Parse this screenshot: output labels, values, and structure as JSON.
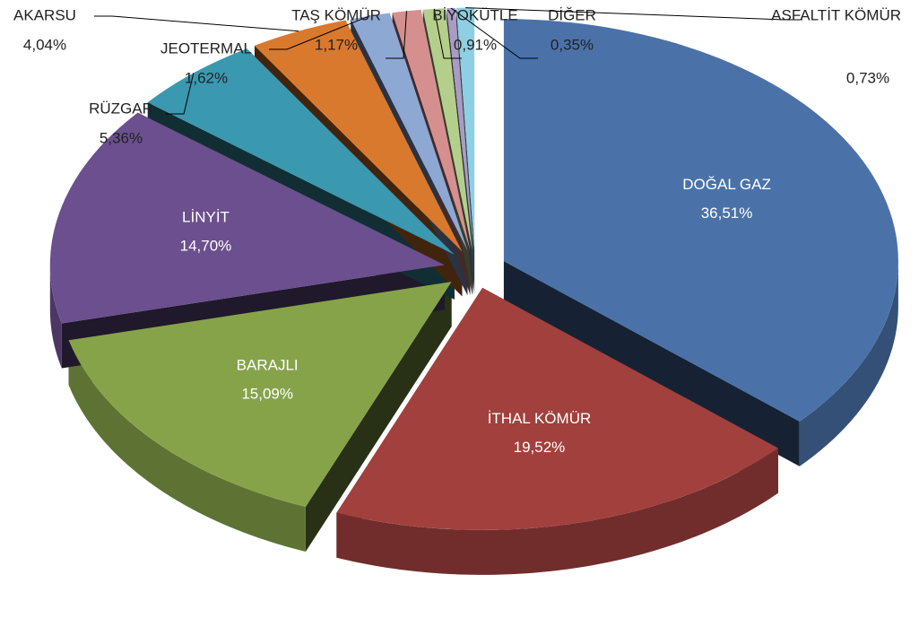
{
  "chart_data": {
    "type": "pie",
    "categories": [
      "DOĞAL GAZ",
      "İTHAL KÖMÜR",
      "BARAJLI",
      "LİNYİT",
      "RÜZGAR",
      "AKARSU",
      "JEOTERMAL",
      "TAŞ KÖMÜR",
      "BİYOKÜTLE",
      "DİĞER",
      "ASFALTİT KÖMÜR"
    ],
    "values": [
      36.51,
      19.52,
      15.09,
      14.7,
      5.36,
      4.04,
      1.62,
      1.17,
      0.91,
      0.35,
      0.73
    ],
    "value_labels": [
      "36,51%",
      "19,52%",
      "15,09%",
      "14,70%",
      "5,36%",
      "4,04%",
      "1,62%",
      "1,17%",
      "0,91%",
      "0,35%",
      "0,73%"
    ],
    "colors": [
      "#4a72a9",
      "#a2403d",
      "#86a34a",
      "#6c4f8f",
      "#3a98b0",
      "#d9792e",
      "#8ea8d4",
      "#d68f8f",
      "#b4cf8b",
      "#a99bc4",
      "#8fcfe3"
    ]
  }
}
